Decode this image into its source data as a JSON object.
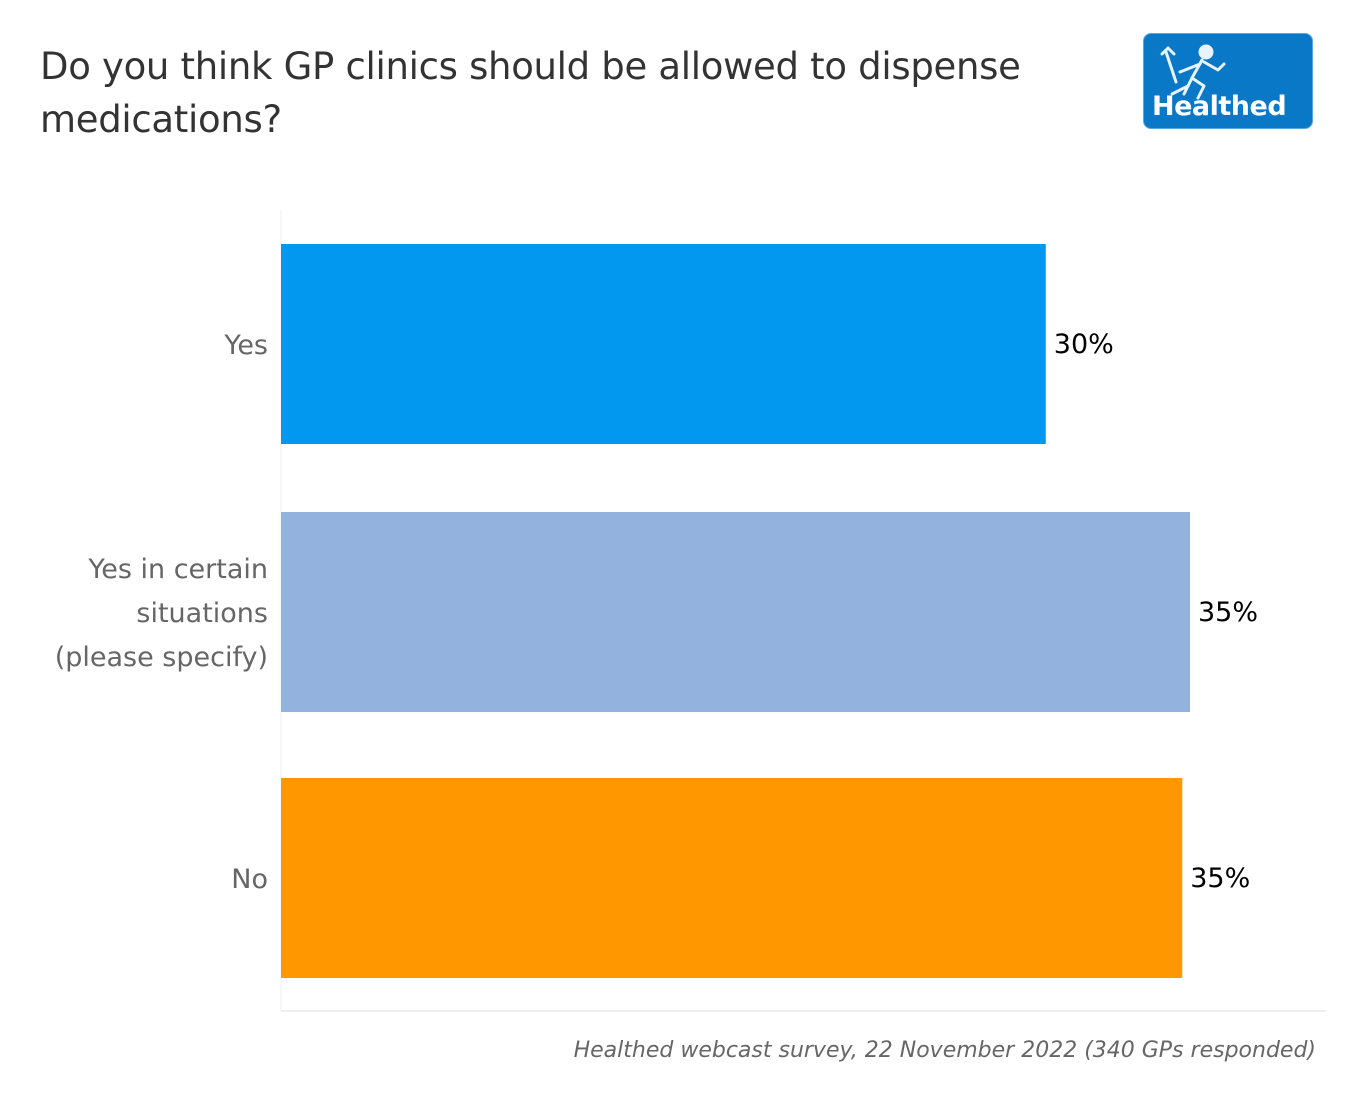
{
  "header": {
    "title": "Do you think GP clinics should be allowed to dispense medications?",
    "logo_text": "Healthed",
    "logo_icon": "hermes-running-figure-icon"
  },
  "footnote": "Healthed webcast survey, 22 November 2022 (340 GPs responded)",
  "chart_data": {
    "type": "bar",
    "orientation": "horizontal",
    "title": "Do you think GP clinics should be allowed to dispense medications?",
    "xlabel": "",
    "ylabel": "",
    "categories": [
      "Yes",
      "Yes in certain situations (please specify)",
      "No"
    ],
    "category_lines": [
      [
        "Yes"
      ],
      [
        "Yes in certain",
        "situations",
        "(please specify)"
      ],
      [
        "No"
      ]
    ],
    "values": [
      29.7,
      35.3,
      35.0
    ],
    "data_labels": [
      "30%",
      "35%",
      "35%"
    ],
    "colors": [
      "#0398f0",
      "#94b2de",
      "#fe9700"
    ],
    "xlim": [
      0,
      40
    ],
    "grid": false,
    "legend": "none"
  }
}
